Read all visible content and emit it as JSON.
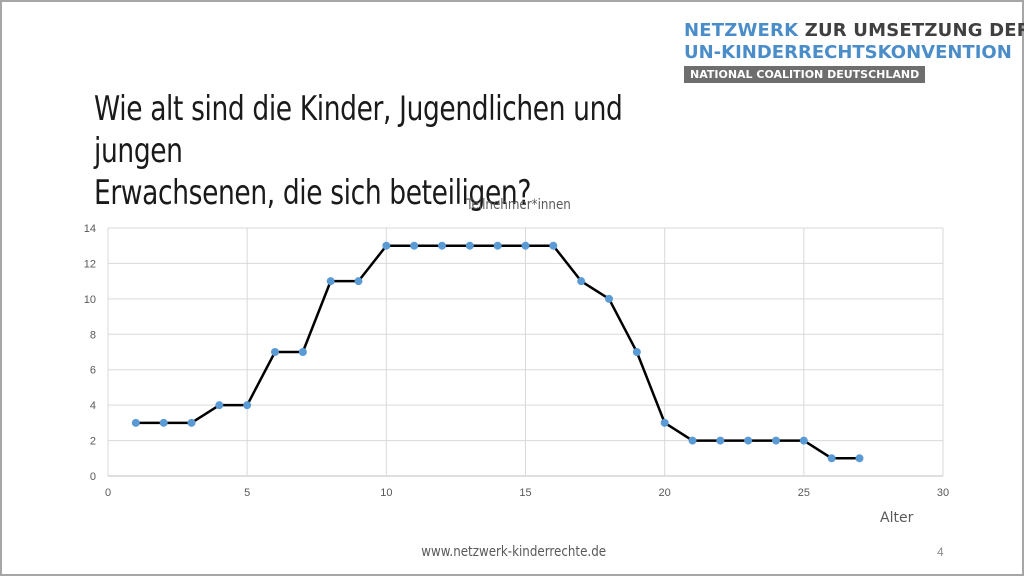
{
  "logo": {
    "line1_blue": "NETZWERK",
    "line1_rest": " ZUR UMSETZUNG DER",
    "line2": "UN-KINDERRECHTSKONVENTION",
    "line3": "NATIONAL COALITION DEUTSCHLAND"
  },
  "slide": {
    "title_line1": "Wie alt sind die Kinder, Jugendlichen und jungen",
    "title_line2": "Erwachsenen, die sich beteiligen?",
    "footer": "www.netzwerk-kinderrechte.de",
    "page_number": "4"
  },
  "chart_data": {
    "type": "line",
    "title": "Teilnehmer*innen",
    "xlabel": "Alter",
    "ylabel": "",
    "xlim": [
      0,
      30
    ],
    "ylim": [
      0,
      14
    ],
    "xticks": [
      0,
      5,
      10,
      15,
      20,
      25,
      30
    ],
    "yticks": [
      0,
      2,
      4,
      6,
      8,
      10,
      12,
      14
    ],
    "grid": true,
    "legend": "none",
    "colors": {
      "line": "#000000",
      "marker": "#5b9bd5",
      "grid": "#d9d9d9",
      "axis": "#bfbfbf",
      "tick_label": "#595959"
    },
    "series": [
      {
        "x": [
          1,
          2,
          3,
          4,
          5,
          6,
          7,
          8,
          9,
          10,
          11,
          12,
          13,
          14,
          15,
          16,
          17,
          18,
          19,
          20,
          21,
          22,
          23,
          24,
          25,
          26,
          27
        ],
        "values": [
          3,
          3,
          3,
          4,
          4,
          7,
          7,
          11,
          11,
          13,
          13,
          13,
          13,
          13,
          13,
          13,
          11,
          10,
          7,
          3,
          2,
          2,
          2,
          2,
          2,
          1,
          1
        ]
      }
    ]
  }
}
